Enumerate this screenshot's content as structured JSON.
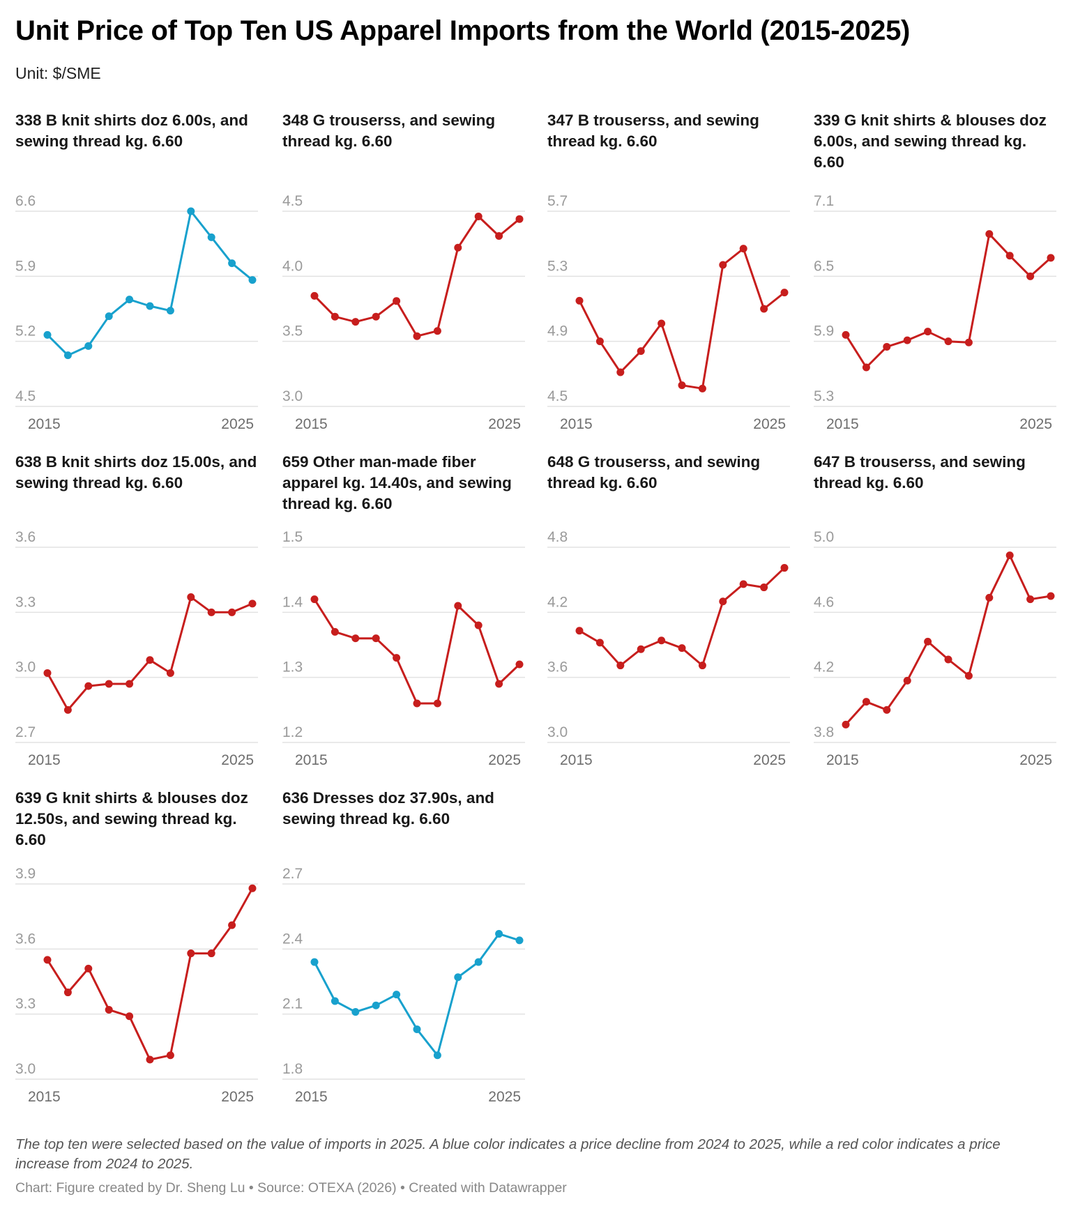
{
  "header": {
    "title": "Unit Price of Top Ten US Apparel Imports from the World (2015-2025)",
    "subtitle": "Unit: $/SME"
  },
  "footer": {
    "note": "The top ten were selected based on the value of imports in 2025. A blue color indicates a price decline from 2024 to 2025, while a red color indicates a price increase from 2024 to 2025.",
    "credit": "Chart: Figure created by Dr. Sheng Lu • Source: OTEXA (2026) • Created with Datawrapper"
  },
  "colors": {
    "decline": "#18a1cd",
    "increase": "#c71e1d",
    "grid": "#e2e2e2"
  },
  "chart_data": [
    {
      "type": "line",
      "title": "338 B knit shirts doz 6.00s, and sewing thread kg. 6.60",
      "x": [
        2015,
        2016,
        2017,
        2018,
        2019,
        2020,
        2021,
        2022,
        2023,
        2024,
        2025
      ],
      "values": [
        5.27,
        5.05,
        5.15,
        5.47,
        5.65,
        5.58,
        5.53,
        6.6,
        6.32,
        6.04,
        5.86
      ],
      "trend": "decline",
      "yticks": [
        4.5,
        5.2,
        5.9,
        6.6
      ],
      "ylim": [
        4.5,
        6.6
      ],
      "xticks": [
        "2015",
        "2025"
      ],
      "grid": true
    },
    {
      "type": "line",
      "title": "348 G trouserss, and sewing thread kg. 6.60",
      "x": [
        2015,
        2016,
        2017,
        2018,
        2019,
        2020,
        2021,
        2022,
        2023,
        2024,
        2025
      ],
      "values": [
        3.85,
        3.69,
        3.65,
        3.69,
        3.81,
        3.54,
        3.58,
        4.22,
        4.46,
        4.31,
        4.44
      ],
      "trend": "increase",
      "yticks": [
        3.0,
        3.5,
        4.0,
        4.5
      ],
      "ylim": [
        3.0,
        4.5
      ],
      "xticks": [
        "2015",
        "2025"
      ],
      "grid": true
    },
    {
      "type": "line",
      "title": "347 B trouserss, and sewing thread kg. 6.60",
      "x": [
        2015,
        2016,
        2017,
        2018,
        2019,
        2020,
        2021,
        2022,
        2023,
        2024,
        2025
      ],
      "values": [
        5.15,
        4.9,
        4.71,
        4.84,
        5.01,
        4.63,
        4.61,
        5.37,
        5.47,
        5.1,
        5.2
      ],
      "trend": "increase",
      "yticks": [
        4.5,
        4.9,
        5.3,
        5.7
      ],
      "ylim": [
        4.5,
        5.7
      ],
      "xticks": [
        "2015",
        "2025"
      ],
      "grid": true
    },
    {
      "type": "line",
      "title": "339 G knit shirts & blouses doz 6.00s, and sewing thread kg. 6.60",
      "x": [
        2015,
        2016,
        2017,
        2018,
        2019,
        2020,
        2021,
        2022,
        2023,
        2024,
        2025
      ],
      "values": [
        5.96,
        5.66,
        5.85,
        5.91,
        5.99,
        5.9,
        5.89,
        6.89,
        6.69,
        6.5,
        6.67
      ],
      "trend": "increase",
      "yticks": [
        5.3,
        5.9,
        6.5,
        7.1
      ],
      "ylim": [
        5.3,
        7.1
      ],
      "xticks": [
        "2015",
        "2025"
      ],
      "grid": true
    },
    {
      "type": "line",
      "title": "638 B knit shirts doz 15.00s, and sewing thread kg. 6.60",
      "x": [
        2015,
        2016,
        2017,
        2018,
        2019,
        2020,
        2021,
        2022,
        2023,
        2024,
        2025
      ],
      "values": [
        3.02,
        2.85,
        2.96,
        2.97,
        2.97,
        3.08,
        3.02,
        3.37,
        3.3,
        3.3,
        3.34
      ],
      "trend": "increase",
      "yticks": [
        2.7,
        3.0,
        3.3,
        3.6
      ],
      "ylim": [
        2.7,
        3.6
      ],
      "xticks": [
        "2015",
        "2025"
      ],
      "grid": true
    },
    {
      "type": "line",
      "title": "659 Other man-made fiber apparel kg. 14.40s, and sewing thread kg. 6.60",
      "x": [
        2015,
        2016,
        2017,
        2018,
        2019,
        2020,
        2021,
        2022,
        2023,
        2024,
        2025
      ],
      "values": [
        1.42,
        1.37,
        1.36,
        1.36,
        1.33,
        1.26,
        1.26,
        1.41,
        1.38,
        1.29,
        1.32
      ],
      "trend": "increase",
      "yticks": [
        1.2,
        1.3,
        1.4,
        1.5
      ],
      "ylim": [
        1.2,
        1.5
      ],
      "xticks": [
        "2015",
        "2025"
      ],
      "grid": true
    },
    {
      "type": "line",
      "title": "648 G trouserss, and sewing thread kg. 6.60",
      "x": [
        2015,
        2016,
        2017,
        2018,
        2019,
        2020,
        2021,
        2022,
        2023,
        2024,
        2025
      ],
      "values": [
        4.03,
        3.92,
        3.71,
        3.86,
        3.94,
        3.87,
        3.71,
        4.3,
        4.46,
        4.43,
        4.61
      ],
      "trend": "increase",
      "yticks": [
        3.0,
        3.6,
        4.2,
        4.8
      ],
      "ylim": [
        3.0,
        4.8
      ],
      "xticks": [
        "2015",
        "2025"
      ],
      "grid": true
    },
    {
      "type": "line",
      "title": "647 B trouserss, and sewing thread kg. 6.60",
      "x": [
        2015,
        2016,
        2017,
        2018,
        2019,
        2020,
        2021,
        2022,
        2023,
        2024,
        2025
      ],
      "values": [
        3.91,
        4.05,
        4.0,
        4.18,
        4.42,
        4.31,
        4.21,
        4.69,
        4.95,
        4.68,
        4.7
      ],
      "trend": "increase",
      "yticks": [
        3.8,
        4.2,
        4.6,
        5.0
      ],
      "ylim": [
        3.8,
        5.0
      ],
      "xticks": [
        "2015",
        "2025"
      ],
      "grid": true
    },
    {
      "type": "line",
      "title": "639 G knit shirts & blouses doz 12.50s, and sewing thread kg. 6.60",
      "x": [
        2015,
        2016,
        2017,
        2018,
        2019,
        2020,
        2021,
        2022,
        2023,
        2024,
        2025
      ],
      "values": [
        3.55,
        3.4,
        3.51,
        3.32,
        3.29,
        3.09,
        3.11,
        3.58,
        3.58,
        3.71,
        3.88
      ],
      "trend": "increase",
      "yticks": [
        3.0,
        3.3,
        3.6,
        3.9
      ],
      "ylim": [
        3.0,
        3.9
      ],
      "xticks": [
        "2015",
        "2025"
      ],
      "grid": true
    },
    {
      "type": "line",
      "title": "636 Dresses doz 37.90s, and sewing thread kg. 6.60",
      "x": [
        2015,
        2016,
        2017,
        2018,
        2019,
        2020,
        2021,
        2022,
        2023,
        2024,
        2025
      ],
      "values": [
        2.34,
        2.16,
        2.11,
        2.14,
        2.19,
        2.03,
        1.91,
        2.27,
        2.34,
        2.47,
        2.44
      ],
      "trend": "decline",
      "yticks": [
        1.8,
        2.1,
        2.4,
        2.7
      ],
      "ylim": [
        1.8,
        2.7
      ],
      "xticks": [
        "2015",
        "2025"
      ],
      "grid": true
    }
  ]
}
